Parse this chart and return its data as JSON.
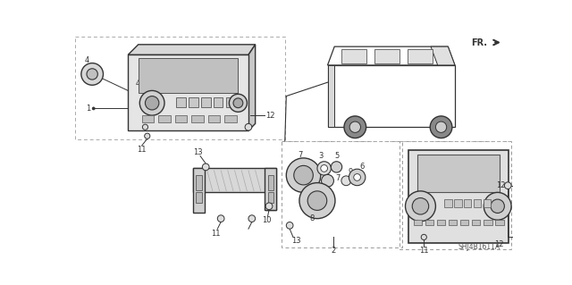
{
  "diagram_id": "SHJ4B1611A",
  "bg_color": "#ffffff",
  "fig_width": 6.4,
  "fig_height": 3.19,
  "dpi": 100,
  "line_color": "#333333",
  "light_gray": "#cccccc",
  "mid_gray": "#999999",
  "dark_gray": "#555555",
  "dash_color": "#aaaaaa"
}
